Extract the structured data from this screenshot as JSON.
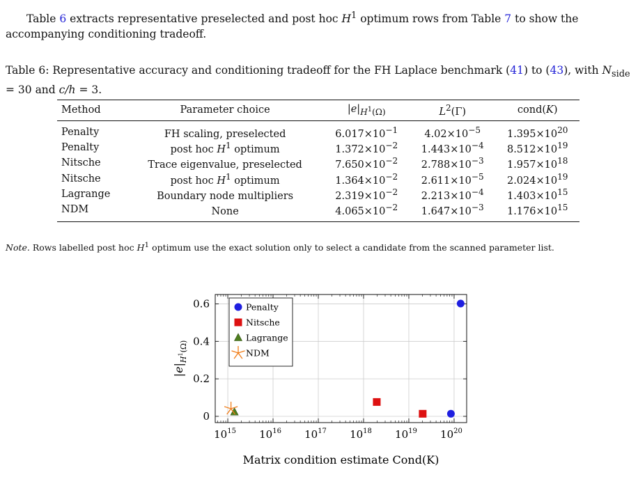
{
  "intro": {
    "t1": "Table ",
    "r1": "6",
    "t2": " extracts representative preselected and post hoc ",
    "h1": "H",
    "h1sup": "1",
    "t3": " optimum rows from Table ",
    "r2": "7",
    "t4": " to show the accompanying conditioning tradeoff."
  },
  "caption": {
    "t1": "Table 6: Representative accuracy and conditioning tradeoff for the FH Laplace benchmark (",
    "r1": "41",
    "t2": ") to (",
    "r2": "43",
    "t3": "), with ",
    "nsym": "N",
    "nsub": "side",
    "t4": " = 30 and ",
    "ch": "c/h",
    "t5": " = 3."
  },
  "table": {
    "headers": {
      "method": "Method",
      "param": "Parameter choice",
      "h1_base": "|e|",
      "h1_sub": "H",
      "h1_subsup": "1",
      "h1_subend": "(Ω)",
      "l2_base": "L",
      "l2_sup": "2",
      "l2_arg": "(Γ)",
      "cond_pre": "cond(",
      "cond_k": "K",
      "cond_post": ")"
    },
    "rows": [
      {
        "method": "Penalty",
        "param_text": "FH scaling, preselected",
        "param_h": "",
        "param_sup": "",
        "param_tail": "",
        "h1_m": "6.017",
        "h1_e": "−1",
        "l2_m": "4.02",
        "l2_e": "−5",
        "cond_m": "1.395",
        "cond_e": "20"
      },
      {
        "method": "Penalty",
        "param_text": "post hoc ",
        "param_h": "H",
        "param_sup": "1",
        "param_tail": " optimum",
        "h1_m": "1.372",
        "h1_e": "−2",
        "l2_m": "1.443",
        "l2_e": "−4",
        "cond_m": "8.512",
        "cond_e": "19"
      },
      {
        "method": "Nitsche",
        "param_text": "Trace eigenvalue, preselected",
        "param_h": "",
        "param_sup": "",
        "param_tail": "",
        "h1_m": "7.650",
        "h1_e": "−2",
        "l2_m": "2.788",
        "l2_e": "−3",
        "cond_m": "1.957",
        "cond_e": "18"
      },
      {
        "method": "Nitsche",
        "param_text": "post hoc ",
        "param_h": "H",
        "param_sup": "1",
        "param_tail": " optimum",
        "h1_m": "1.364",
        "h1_e": "−2",
        "l2_m": "2.611",
        "l2_e": "−5",
        "cond_m": "2.024",
        "cond_e": "19"
      },
      {
        "method": "Lagrange",
        "param_text": "Boundary node multipliers",
        "param_h": "",
        "param_sup": "",
        "param_tail": "",
        "h1_m": "2.319",
        "h1_e": "−2",
        "l2_m": "2.213",
        "l2_e": "−4",
        "cond_m": "1.403",
        "cond_e": "15"
      },
      {
        "method": "NDM",
        "param_text": "None",
        "param_h": "",
        "param_sup": "",
        "param_tail": "",
        "h1_m": "4.065",
        "h1_e": "−2",
        "l2_m": "1.647",
        "l2_e": "−3",
        "cond_m": "1.176",
        "cond_e": "15"
      }
    ]
  },
  "note": {
    "label": "Note.",
    "t1": " Rows labelled post hoc ",
    "h": "H",
    "hsup": "1",
    "t2": " optimum use the exact solution only to select a candidate from the scanned parameter list."
  },
  "chart_data": {
    "type": "scatter",
    "xscale": "log",
    "xlim": [
      1000000000000000.0,
      1e+20
    ],
    "ylim": [
      0,
      0.65
    ],
    "grid": true,
    "legend_position": "top-left",
    "xlabel": "Matrix condition estimate Cond(K)",
    "ylabel": "|e|H1(Ω)",
    "xticks": [
      {
        "value": 1000000000000000.0,
        "base": "10",
        "exp": "15"
      },
      {
        "value": 1e+16,
        "base": "10",
        "exp": "16"
      },
      {
        "value": 1e+17,
        "base": "10",
        "exp": "17"
      },
      {
        "value": 1e+18,
        "base": "10",
        "exp": "18"
      },
      {
        "value": 1e+19,
        "base": "10",
        "exp": "19"
      },
      {
        "value": 1e+20,
        "base": "10",
        "exp": "20"
      }
    ],
    "yticks": [
      {
        "value": 0,
        "label": "0"
      },
      {
        "value": 0.2,
        "label": "0.2"
      },
      {
        "value": 0.4,
        "label": "0.4"
      },
      {
        "value": 0.6,
        "label": "0.6"
      }
    ],
    "series": [
      {
        "name": "Penalty",
        "marker": "circle",
        "color": "#1f1fe0",
        "points": [
          {
            "x": 1.395e+20,
            "y": 0.6017
          },
          {
            "x": 8.512e+19,
            "y": 0.01372
          }
        ]
      },
      {
        "name": "Nitsche",
        "marker": "square",
        "color": "#dd1111",
        "points": [
          {
            "x": 1.957e+18,
            "y": 0.0765
          },
          {
            "x": 2.024e+19,
            "y": 0.01364
          }
        ]
      },
      {
        "name": "Lagrange",
        "marker": "triangle",
        "color": "#4f7f1f",
        "points": [
          {
            "x": 1403000000000000.0,
            "y": 0.02319
          }
        ]
      },
      {
        "name": "NDM",
        "marker": "asterisk",
        "color": "#f07c17",
        "points": [
          {
            "x": 1176000000000000.0,
            "y": 0.04065
          }
        ]
      }
    ]
  }
}
